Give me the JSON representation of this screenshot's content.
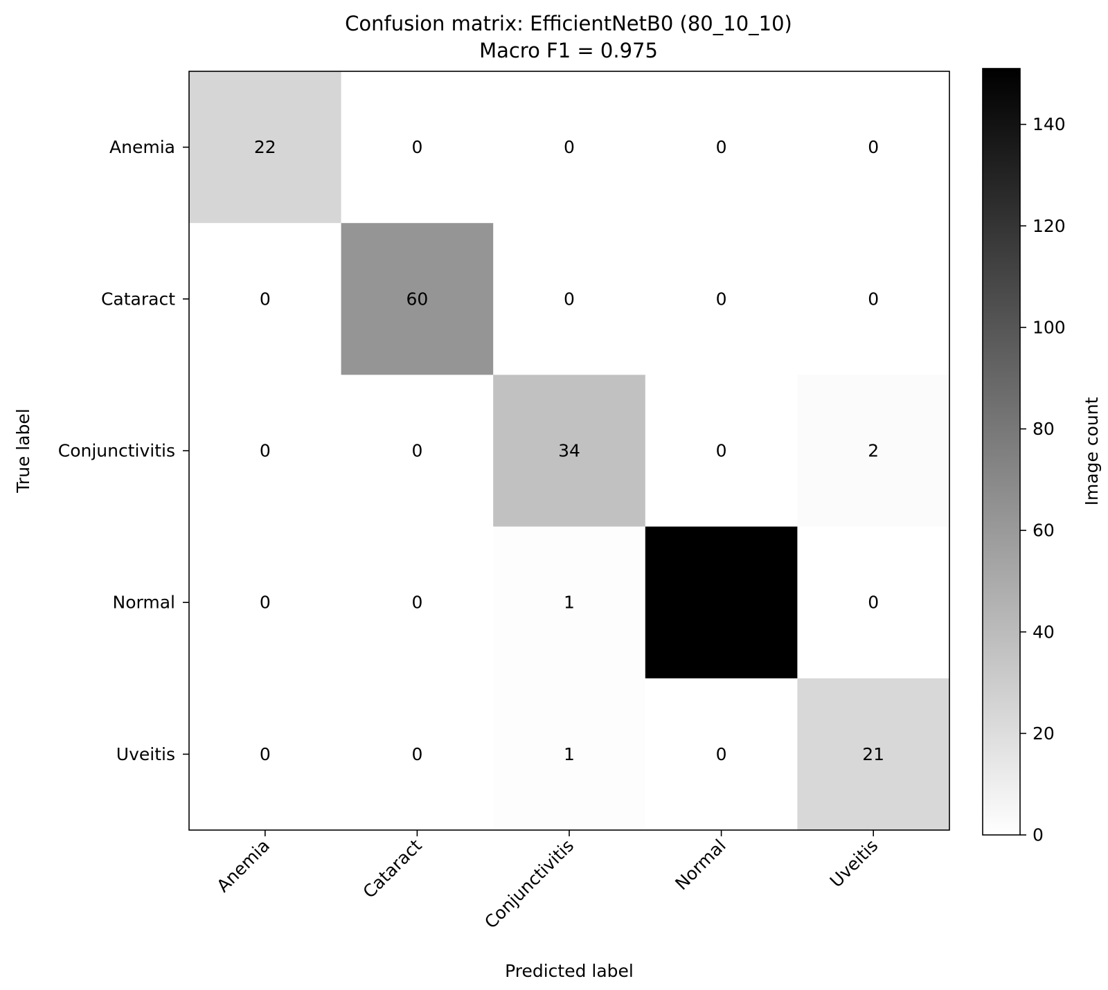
{
  "chart_data": {
    "type": "heatmap",
    "title": "Confusion matrix: EfficientNetB0 (80_10_10)",
    "subtitle": "Macro F1 = 0.975",
    "xlabel": "Predicted label",
    "ylabel": "True label",
    "x_categories": [
      "Anemia",
      "Cataract",
      "Conjunctivitis",
      "Normal",
      "Uveitis"
    ],
    "y_categories": [
      "Anemia",
      "Cataract",
      "Conjunctivitis",
      "Normal",
      "Uveitis"
    ],
    "values": [
      [
        22,
        0,
        0,
        0,
        0
      ],
      [
        0,
        60,
        0,
        0,
        0
      ],
      [
        0,
        0,
        34,
        0,
        2
      ],
      [
        0,
        0,
        1,
        151,
        0
      ],
      [
        0,
        0,
        1,
        0,
        21
      ]
    ],
    "colorbar": {
      "label": "Image count",
      "range": [
        0,
        151
      ],
      "ticks": [
        0,
        20,
        40,
        60,
        80,
        100,
        120,
        140
      ],
      "colormap": "Greys"
    },
    "grid": false
  }
}
